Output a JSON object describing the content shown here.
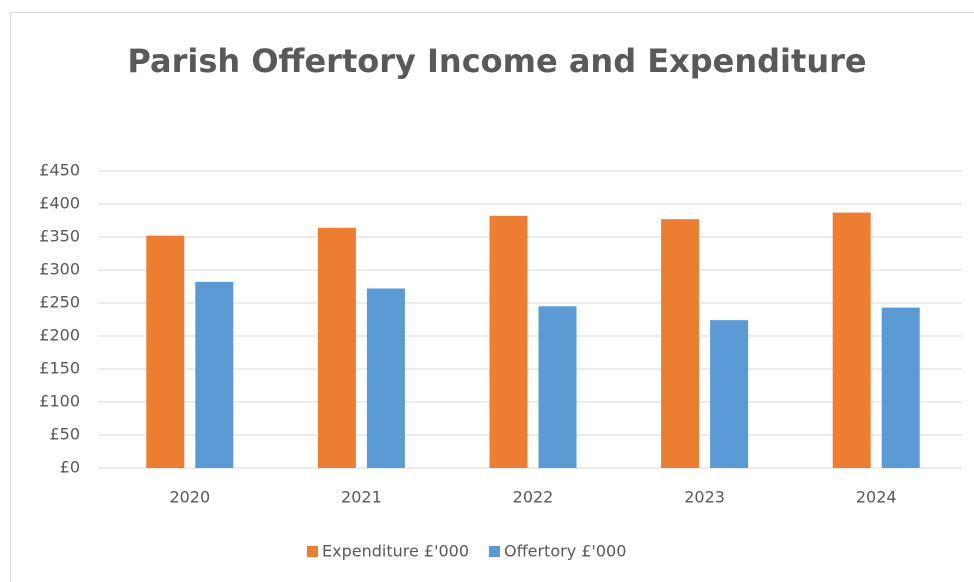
{
  "chart_data": {
    "type": "bar",
    "title": "Parish Offertory Income and Expenditure",
    "categories": [
      "2020",
      "2021",
      "2022",
      "2023",
      "2024"
    ],
    "series": [
      {
        "name": "Expenditure £'000",
        "color": "#ed7d31",
        "values": [
          352,
          364,
          382,
          377,
          387
        ]
      },
      {
        "name": "Offertory £'000",
        "color": "#5b9bd5",
        "values": [
          282,
          272,
          245,
          224,
          243
        ]
      }
    ],
    "ylim": [
      0,
      450
    ],
    "yticks": [
      {
        "value": 0,
        "label": "£0"
      },
      {
        "value": 50,
        "label": "£50"
      },
      {
        "value": 100,
        "label": "£100"
      },
      {
        "value": 150,
        "label": "£150"
      },
      {
        "value": 200,
        "label": "£200"
      },
      {
        "value": 250,
        "label": "£250"
      },
      {
        "value": 300,
        "label": "£300"
      },
      {
        "value": 350,
        "label": "£350"
      },
      {
        "value": 400,
        "label": "£400"
      },
      {
        "value": 450,
        "label": "£450"
      }
    ],
    "grid": true,
    "legend": "bottom"
  }
}
